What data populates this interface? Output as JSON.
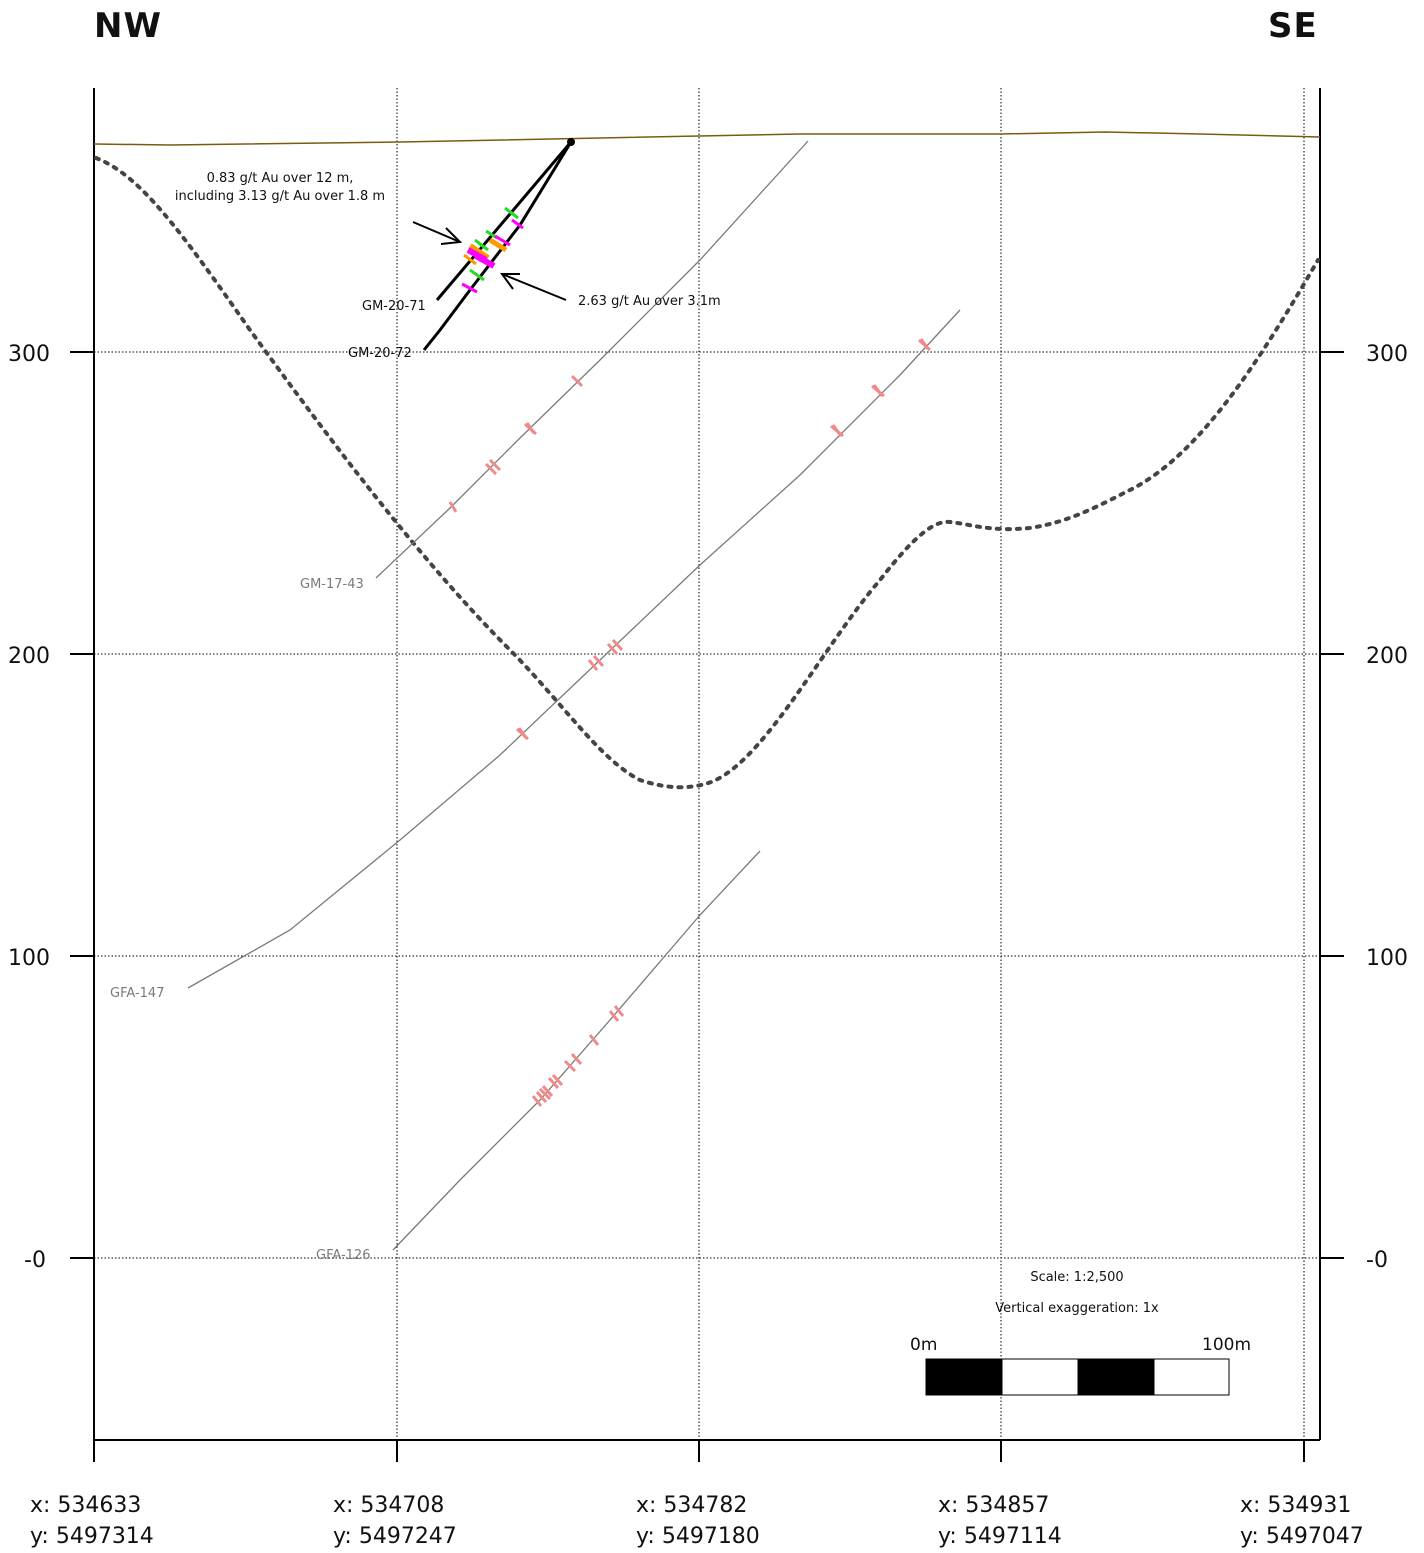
{
  "directions": {
    "left": "NW",
    "right": "SE"
  },
  "elevation_labels": [
    "300",
    "200",
    "100",
    "-0"
  ],
  "coordinates": [
    {
      "x": "x: 534633",
      "y": "y: 5497314"
    },
    {
      "x": "x: 534708",
      "y": "y: 5497247"
    },
    {
      "x": "x: 534782",
      "y": "y: 5497180"
    },
    {
      "x": "x: 534857",
      "y": "y: 5497114"
    },
    {
      "x": "x: 534931",
      "y": "y: 5497047"
    }
  ],
  "holes": {
    "gm2071": "GM-20-71",
    "gm2072": "GM-20-72",
    "gm1743": "GM-17-43",
    "gfa147": "GFA-147",
    "gfa126": "GFA-126"
  },
  "annotations": {
    "intercept_a_line1": "0.83 g/t Au over 12 m,",
    "intercept_a_line2": "including 3.13 g/t Au over 1.8 m",
    "intercept_b": "2.63 g/t Au over 3.1m"
  },
  "scale": {
    "ratio": "Scale: 1:2,500",
    "exaggeration": "Vertical exaggeration: 1x",
    "start": "0m",
    "end": "100m"
  },
  "colors": {
    "topography": "#7a5c10",
    "grid": "#000000",
    "hole_grey": "#7a7a7a",
    "hole_black": "#000000",
    "sample_pink": "#f08a8a",
    "intercept_green": "#22dd22",
    "intercept_magenta": "#ff00ff",
    "intercept_orange": "#ff9900",
    "envelope": "#444444"
  }
}
